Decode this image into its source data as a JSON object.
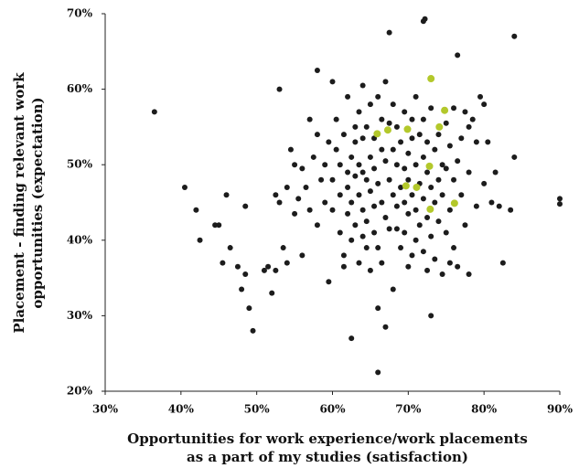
{
  "chart_data": {
    "type": "scatter",
    "xlabel": [
      "Opportunities for work experience/work placements",
      "as a part of my studies (satisfaction)"
    ],
    "ylabel": [
      "Placement - finding relevant work",
      "opportunities (expectation)"
    ],
    "xlim": [
      30,
      90
    ],
    "ylim": [
      20,
      70
    ],
    "xticks": [
      {
        "value": 30,
        "label": "30%"
      },
      {
        "value": 40,
        "label": "40%"
      },
      {
        "value": 50,
        "label": "50%"
      },
      {
        "value": 60,
        "label": "60%"
      },
      {
        "value": 70,
        "label": "70%"
      },
      {
        "value": 80,
        "label": "80%"
      },
      {
        "value": 90,
        "label": "90%"
      }
    ],
    "yticks": [
      {
        "value": 20,
        "label": "20%"
      },
      {
        "value": 30,
        "label": "30%"
      },
      {
        "value": 40,
        "label": "40%"
      },
      {
        "value": 50,
        "label": "50%"
      },
      {
        "value": 60,
        "label": "60%"
      },
      {
        "value": 70,
        "label": "70%"
      }
    ],
    "series": [
      {
        "color": "#1c1c1c",
        "x": [
          36.5,
          40.5,
          42,
          42.5,
          44.5,
          45,
          45.5,
          46,
          46.5,
          47.5,
          48,
          48.5,
          48.5,
          49,
          49.5,
          51,
          51.5,
          52,
          52.5,
          52.5,
          53,
          53,
          53.5,
          54,
          54,
          54.5,
          55,
          55,
          55.5,
          56,
          56,
          56.5,
          57,
          57,
          57.5,
          58,
          58,
          58,
          58.5,
          59,
          59,
          59.5,
          59.5,
          60,
          60,
          60,
          60.5,
          60.5,
          61,
          61,
          61,
          61.5,
          61.5,
          61.5,
          62,
          62,
          62,
          62,
          62.5,
          62.5,
          62.5,
          62.5,
          63,
          63,
          63,
          63,
          63.5,
          63.5,
          63.5,
          63.5,
          64,
          64,
          64,
          64,
          64,
          64.5,
          64.5,
          64.5,
          64.5,
          65,
          65,
          65,
          65,
          65.5,
          65.5,
          65.5,
          65.5,
          66,
          66,
          66,
          66,
          66,
          66.5,
          66.5,
          66.5,
          66.5,
          67,
          67,
          67,
          67,
          67.5,
          67.5,
          67.5,
          67.5,
          68,
          68,
          68,
          68,
          68.5,
          68.5,
          68.5,
          68.5,
          69,
          69,
          69,
          69.5,
          69.5,
          69.5,
          69.5,
          70,
          70,
          70,
          70,
          70.5,
          70.5,
          70.5,
          70.5,
          71,
          71,
          71,
          71,
          71.5,
          71.5,
          71.5,
          72,
          72.2,
          72,
          72,
          72,
          72,
          72.5,
          72.5,
          72.5,
          72.5,
          73,
          73,
          73,
          73,
          73.5,
          73.5,
          73.5,
          74,
          74,
          74,
          74.5,
          74.5,
          74.5,
          75,
          75,
          75,
          75.5,
          75.5,
          75.5,
          76,
          76,
          76,
          76.5,
          76.5,
          76.5,
          77,
          77,
          77.5,
          77.5,
          78,
          78,
          78,
          78.5,
          79,
          79,
          79.5,
          80,
          80,
          80.5,
          81,
          81.5,
          82,
          82.5,
          83.5,
          84,
          84,
          90,
          90
        ],
        "values": [
          57,
          47,
          44,
          40,
          42,
          42,
          37,
          46,
          39,
          36.5,
          33.5,
          35.5,
          44.5,
          31,
          28,
          36,
          36.5,
          33,
          36,
          46,
          60,
          45,
          39,
          37,
          47,
          52,
          50,
          43.5,
          45.5,
          49.5,
          38,
          47,
          44,
          56,
          51,
          62.5,
          54,
          42,
          48,
          50,
          45,
          53,
          34.5,
          61,
          48,
          44,
          56,
          52,
          50,
          46,
          41,
          54,
          38,
          36.5,
          59,
          49,
          47,
          43.5,
          51,
          45,
          40,
          27,
          55,
          53,
          48.5,
          42,
          57,
          50,
          46,
          37,
          60.5,
          53.5,
          49,
          44,
          40.5,
          55,
          48,
          42.5,
          39,
          58,
          51,
          46.5,
          36,
          53.5,
          49.5,
          44.5,
          41,
          59,
          47.5,
          39,
          31,
          22.5,
          56,
          52,
          45,
          37,
          61,
          50.5,
          43,
          28.5,
          67.5,
          55.5,
          48,
          41.5,
          58,
          52,
          46,
          33.5,
          55,
          50,
          44.5,
          41.5,
          53,
          47,
          39,
          57,
          49.5,
          45,
          41,
          51.5,
          48,
          43.5,
          36.5,
          56,
          53.5,
          46,
          38,
          59,
          50,
          44,
          40,
          54,
          47.5,
          42,
          69,
          69.3,
          56,
          51,
          45.5,
          38.5,
          53,
          49,
          43,
          36,
          57.5,
          47,
          40.5,
          30,
          52,
          45,
          37.5,
          54,
          48,
          42.5,
          50,
          46,
          35.5,
          55.5,
          49.5,
          41,
          52.5,
          44,
          37,
          57.5,
          48,
          39,
          64.5,
          50.5,
          36.5,
          53.5,
          46,
          57,
          42,
          55,
          49,
          35.5,
          56,
          53,
          44.5,
          59,
          47.5,
          58,
          53,
          45,
          49,
          44.5,
          37,
          44,
          67,
          51,
          45.5,
          44.8
        ]
      },
      {
        "color": "#b3c82b",
        "x": [
          65.9,
          67.3,
          69.9,
          74.1,
          72.8,
          69.7,
          71.1,
          76.1,
          72.9,
          73.0,
          74.8
        ],
        "values": [
          54.1,
          54.6,
          54.7,
          55.0,
          49.8,
          47.2,
          47.0,
          44.9,
          44.1,
          61.4,
          57.2
        ]
      }
    ]
  }
}
